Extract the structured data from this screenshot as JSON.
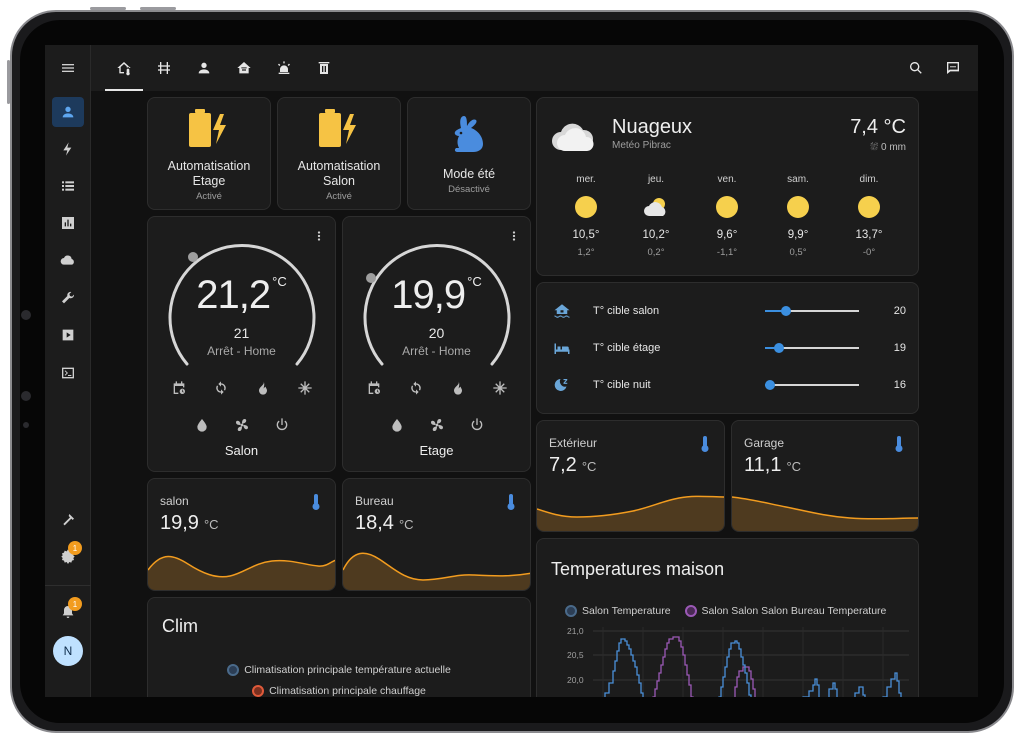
{
  "toolbar": {
    "tabs": [
      "home-thermometer",
      "heat-pump",
      "person",
      "home-automation",
      "alarm-light",
      "trash"
    ],
    "actions": [
      "search",
      "assist",
      "more"
    ]
  },
  "sidebar": {
    "items": [
      "overview",
      "energy",
      "logbook",
      "history",
      "cloud",
      "config",
      "media",
      "terminal"
    ],
    "bottom": [
      "developer-tools",
      "settings",
      "notifications"
    ],
    "settings_badge": "1",
    "notifications_badge": "1",
    "user_initial": "N"
  },
  "buttons": [
    {
      "name_line1": "Automatisation",
      "name_line2": "Etage",
      "state": "Activé"
    },
    {
      "name_line1": "Automatisation",
      "name_line2": "Salon",
      "state": "Activé"
    },
    {
      "name": "Mode été",
      "state": "Désactivé"
    }
  ],
  "thermostats": [
    {
      "temp": "21,2",
      "unit": "°C",
      "target": "21",
      "mode": "Arrêt - Home",
      "name": "Salon"
    },
    {
      "temp": "19,9",
      "unit": "°C",
      "target": "20",
      "mode": "Arrêt - Home",
      "name": "Etage"
    }
  ],
  "sensors": {
    "salon": {
      "label": "salon",
      "value": "19,9",
      "unit": "°C"
    },
    "bureau": {
      "label": "Bureau",
      "value": "18,4",
      "unit": "°C"
    },
    "exterieur": {
      "label": "Extérieur",
      "value": "7,2",
      "unit": "°C"
    },
    "garage": {
      "label": "Garage",
      "value": "11,1",
      "unit": "°C"
    }
  },
  "weather": {
    "condition": "Nuageux",
    "source": "Metéo Pibrac",
    "temp": "7,4 °C",
    "precip": "0 mm",
    "forecast": [
      {
        "day": "mer.",
        "hi": "10,5°",
        "lo": "1,2°",
        "icon": "sunny"
      },
      {
        "day": "jeu.",
        "hi": "10,2°",
        "lo": "0,2°",
        "icon": "partly-cloudy"
      },
      {
        "day": "ven.",
        "hi": "9,6°",
        "lo": "-1,1°",
        "icon": "sunny"
      },
      {
        "day": "sam.",
        "hi": "9,9°",
        "lo": "0,5°",
        "icon": "sunny"
      },
      {
        "day": "dim.",
        "hi": "13,7°",
        "lo": "-0°",
        "icon": "sunny"
      }
    ]
  },
  "sliders": [
    {
      "name": "T° cible salon",
      "value": "20",
      "level": 0.22,
      "icon": "home-flood-icon"
    },
    {
      "name": "T° cible étage",
      "value": "19",
      "level": 0.15,
      "icon": "bed-icon"
    },
    {
      "name": "T° cible nuit",
      "value": "16",
      "level": 0.05,
      "icon": "sleep-icon"
    }
  ],
  "clim": {
    "title": "Clim",
    "legend": [
      "Climatisation principale température actuelle",
      "Climatisation principale chauffage"
    ]
  },
  "temps_maison": {
    "title": "Temperatures maison",
    "legend": [
      "Salon Temperature",
      "Salon Salon Salon Bureau Temperature"
    ],
    "y_ticks": [
      "21,0",
      "20,5",
      "20,0"
    ]
  },
  "chart_data": {
    "type": "line",
    "title": "Temperatures maison",
    "series": [
      {
        "name": "Salon Temperature",
        "color": "#4a90d9"
      },
      {
        "name": "Salon Salon Salon Bureau Temperature",
        "color": "#9b59b6"
      }
    ],
    "yticks": [
      "21,0",
      "20,5",
      "20,0"
    ],
    "ylim": [
      19.8,
      21.0
    ]
  },
  "colors": {
    "accent": "#3b8fe0",
    "graph": "#f29c1f",
    "warning": "#f6c344",
    "thermo_icon": "#4a8cde"
  }
}
